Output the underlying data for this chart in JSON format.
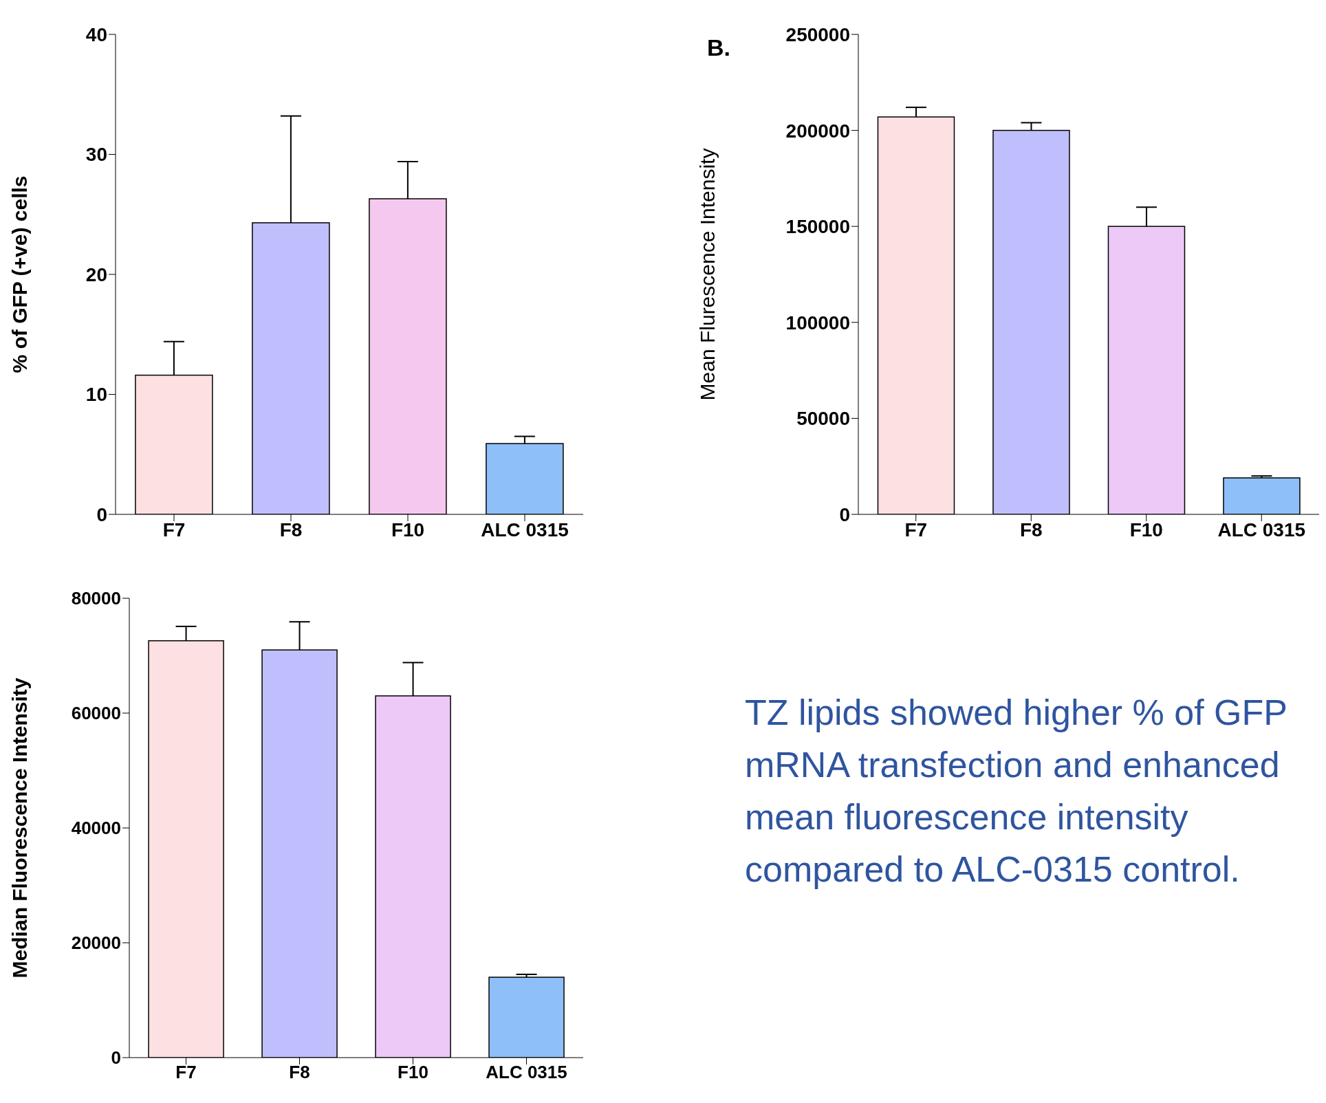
{
  "chart_data": [
    {
      "type": "bar",
      "ylabel": "% of GFP (+ve) cells",
      "categories": [
        "F7",
        "F8",
        "F10",
        "ALC 0315"
      ],
      "values": [
        11.6,
        24.3,
        26.3,
        5.9
      ],
      "errors": [
        [
          11.6,
          14.4
        ],
        [
          24.3,
          33.2
        ],
        [
          26.3,
          29.4
        ],
        [
          5.9,
          6.5
        ]
      ],
      "colors": [
        "#fde0e1",
        "#c0bffd",
        "#f5c8ef",
        "#8fbff8"
      ],
      "ylim": [
        0,
        40
      ],
      "yticks": [
        0,
        10,
        20,
        30,
        40
      ]
    },
    {
      "type": "bar",
      "title": "B.",
      "ylabel": "Mean Flurescence Intensity",
      "categories": [
        "F7",
        "F8",
        "F10",
        "ALC 0315"
      ],
      "values": [
        207000,
        200000,
        150000,
        19000
      ],
      "errors": [
        [
          207000,
          212000
        ],
        [
          200000,
          204000
        ],
        [
          150000,
          160000
        ],
        [
          19000,
          20000
        ]
      ],
      "colors": [
        "#fde0e1",
        "#c0bffd",
        "#ecc9f7",
        "#8fbff8"
      ],
      "ylim": [
        0,
        250000
      ],
      "yticks": [
        0,
        50000,
        100000,
        150000,
        200000,
        250000
      ]
    },
    {
      "type": "bar",
      "ylabel": "Median Fluorescence Intensity",
      "categories": [
        "F7",
        "F8",
        "F10",
        "ALC 0315"
      ],
      "values": [
        72600,
        71000,
        63000,
        14000
      ],
      "errors": [
        [
          72600,
          75100
        ],
        [
          71000,
          75900
        ],
        [
          63000,
          68800
        ],
        [
          14000,
          14500
        ]
      ],
      "colors": [
        "#fde0e1",
        "#c0bffd",
        "#ecc9f7",
        "#8fbff8"
      ],
      "ylim": [
        0,
        80000
      ],
      "yticks": [
        0,
        20000,
        40000,
        60000,
        80000
      ]
    },
    {
      "type": "other",
      "annotations": [
        "TZ lipids showed  higher % of GFP mRNA transfection and enhanced mean fluorescence intensity  compared to ALC-0315 control."
      ]
    }
  ]
}
